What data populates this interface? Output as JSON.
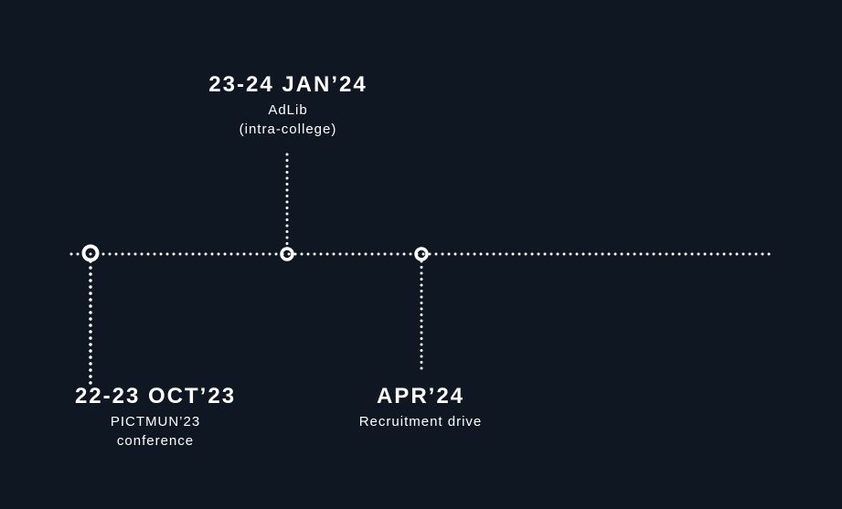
{
  "timeline": {
    "events": [
      {
        "date": "22-23 OCT’23",
        "description": [
          "PICTMUN’23",
          "conference"
        ]
      },
      {
        "date": "23-24 JAN’24",
        "description": [
          "AdLib",
          "(intra-college)"
        ]
      },
      {
        "date": "APR’24",
        "description": [
          "Recruitment drive"
        ]
      }
    ]
  },
  "colors": {
    "background": "#0f1722",
    "foreground": "#ffffff"
  }
}
